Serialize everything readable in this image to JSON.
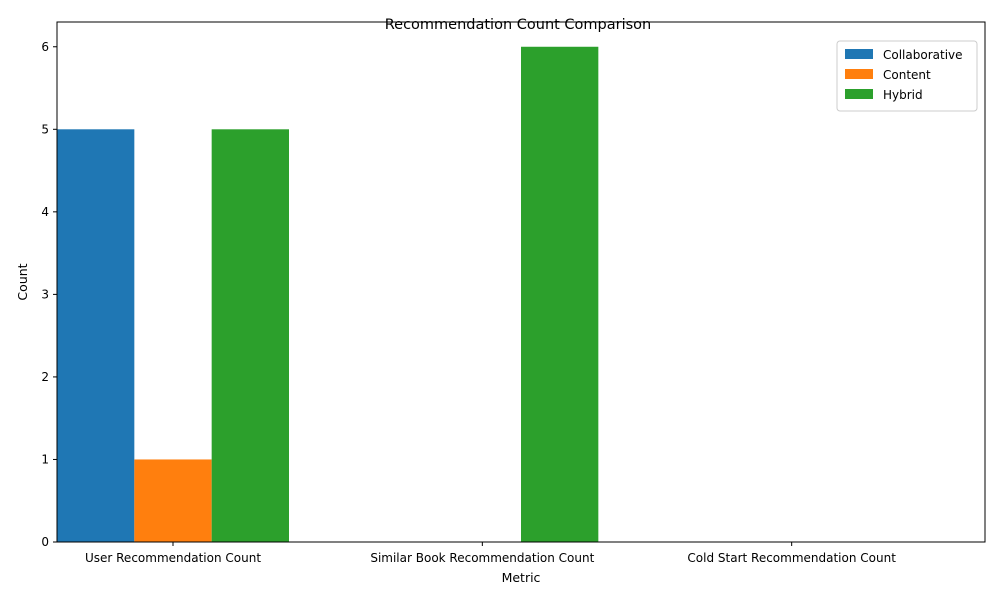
{
  "chart_data": {
    "type": "bar",
    "title": "Recommendation Count Comparison",
    "xlabel": "Metric",
    "ylabel": "Count",
    "categories": [
      "User Recommendation Count",
      "Similar Book Recommendation Count",
      "Cold Start Recommendation Count"
    ],
    "series": [
      {
        "name": "Collaborative",
        "color": "#1f77b4",
        "values": [
          5,
          0,
          0
        ]
      },
      {
        "name": "Content",
        "color": "#ff7f0e",
        "values": [
          1,
          0,
          0
        ]
      },
      {
        "name": "Hybrid",
        "color": "#2ca02c",
        "values": [
          5,
          6,
          0
        ]
      }
    ],
    "ylim": [
      0,
      6.3
    ],
    "yticks": [
      0,
      1,
      2,
      3,
      4,
      5,
      6
    ],
    "grid": false,
    "legend_position": "top-right"
  }
}
